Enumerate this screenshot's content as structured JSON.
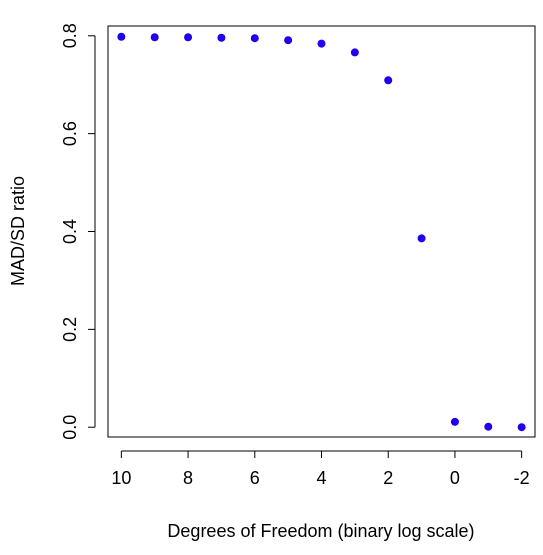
{
  "chart_data": {
    "type": "scatter",
    "title": "",
    "xlabel": "Degrees of Freedom (binary log scale)",
    "ylabel": "MAD/SD ratio",
    "x_scale": "log2, reversed",
    "xlim": [
      10.4,
      -2.4
    ],
    "ylim": [
      -0.02,
      0.82
    ],
    "xticks": [
      10,
      8,
      6,
      4,
      2,
      0,
      -2
    ],
    "xtick_labels": [
      "10",
      "8",
      "6",
      "4",
      "2",
      "0",
      "-2"
    ],
    "yticks": [
      0.0,
      0.2,
      0.4,
      0.6,
      0.8
    ],
    "ytick_labels": [
      "0.0",
      "0.2",
      "0.4",
      "0.6",
      "0.8"
    ],
    "grid": false,
    "legend": "none",
    "marker_color": "#2000f0",
    "series": [
      {
        "points": [
          {
            "x": 10,
            "y": 0.798
          },
          {
            "x": 9,
            "y": 0.797
          },
          {
            "x": 8,
            "y": 0.797
          },
          {
            "x": 7,
            "y": 0.796
          },
          {
            "x": 6,
            "y": 0.795
          },
          {
            "x": 5,
            "y": 0.791
          },
          {
            "x": 4,
            "y": 0.784
          },
          {
            "x": 3,
            "y": 0.766
          },
          {
            "x": 2,
            "y": 0.709
          },
          {
            "x": 1,
            "y": 0.386
          },
          {
            "x": 0,
            "y": 0.011
          },
          {
            "x": -1,
            "y": 0.001
          },
          {
            "x": -2,
            "y": 0.0
          }
        ]
      }
    ]
  }
}
